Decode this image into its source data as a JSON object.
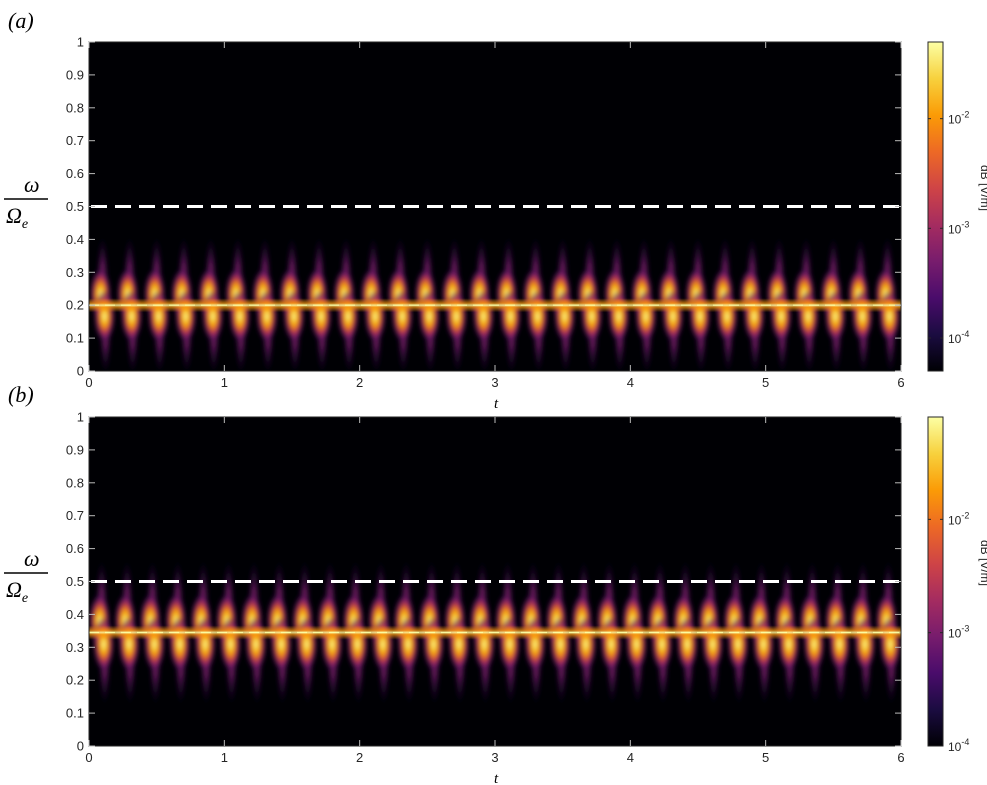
{
  "chart_data": [
    {
      "type": "heatmap",
      "panel_label": "(a)",
      "xlabel": "t",
      "ylabel_num": "ω",
      "ylabel_den": "Ω",
      "ylabel_den_sub": "e",
      "xlim": [
        0,
        6
      ],
      "ylim": [
        0,
        1
      ],
      "xticks": [
        0,
        1,
        2,
        3,
        4,
        5,
        6
      ],
      "yticks": [
        0,
        0.1,
        0.2,
        0.3,
        0.4,
        0.5,
        0.6,
        0.7,
        0.8,
        0.9,
        1
      ],
      "dashed_line_y": 0.5,
      "center_frequency": 0.2,
      "pulse_count": 30,
      "colorbar": {
        "scale": "log",
        "range": [
          5e-05,
          0.05
        ],
        "ticks": [
          {
            "value": 0.0001,
            "base": "10",
            "exp": "-4"
          },
          {
            "value": 0.001,
            "base": "10",
            "exp": "-3"
          },
          {
            "value": 0.01,
            "base": "10",
            "exp": "-2"
          }
        ],
        "label": "dB [V/m]"
      }
    },
    {
      "type": "heatmap",
      "panel_label": "(b)",
      "xlabel": "t",
      "ylabel_num": "ω",
      "ylabel_den": "Ω",
      "ylabel_den_sub": "e",
      "xlim": [
        0,
        6
      ],
      "ylim": [
        0,
        1
      ],
      "xticks": [
        0,
        1,
        2,
        3,
        4,
        5,
        6
      ],
      "yticks": [
        0,
        0.1,
        0.2,
        0.3,
        0.4,
        0.5,
        0.6,
        0.7,
        0.8,
        0.9,
        1
      ],
      "dashed_line_y": 0.5,
      "center_frequency": 0.345,
      "pulse_count": 32,
      "colorbar": {
        "scale": "log",
        "range": [
          0.0001,
          0.08
        ],
        "ticks": [
          {
            "value": 0.0001,
            "base": "10",
            "exp": "-4"
          },
          {
            "value": 0.001,
            "base": "10",
            "exp": "-3"
          },
          {
            "value": 0.01,
            "base": "10",
            "exp": "-2"
          }
        ],
        "label": "dB [V/m]"
      }
    }
  ],
  "colormap": [
    "#000004",
    "#1b0c41",
    "#4a0c6b",
    "#781c6d",
    "#a52c60",
    "#cf4446",
    "#ed6925",
    "#fb9b06",
    "#f7d13d",
    "#fcffa4"
  ]
}
